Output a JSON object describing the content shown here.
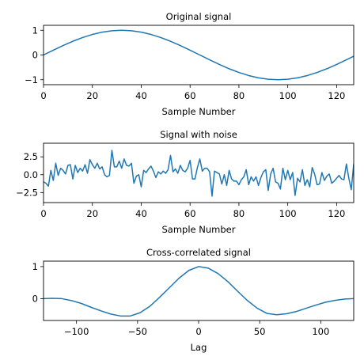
{
  "colors": {
    "line": "#1f77b4"
  },
  "chart_data": [
    {
      "type": "line",
      "title": "Original signal",
      "xlabel": "Sample Number",
      "ylabel": "",
      "xlim": [
        0,
        127
      ],
      "ylim": [
        -1.2,
        1.2
      ],
      "xticks": [
        0,
        20,
        40,
        60,
        80,
        100,
        120
      ],
      "yticks": [
        -1,
        0,
        1
      ],
      "grid": false,
      "series": [
        {
          "x": [
            0,
            4,
            8,
            12,
            16,
            20,
            24,
            28,
            32,
            36,
            40,
            44,
            48,
            52,
            56,
            60,
            64,
            68,
            72,
            76,
            80,
            84,
            88,
            92,
            96,
            100,
            104,
            108,
            112,
            116,
            120,
            124,
            127
          ],
          "y": [
            0,
            0.195,
            0.383,
            0.556,
            0.707,
            0.831,
            0.924,
            0.981,
            1,
            0.981,
            0.924,
            0.831,
            0.707,
            0.556,
            0.383,
            0.195,
            0,
            -0.195,
            -0.383,
            -0.556,
            -0.707,
            -0.831,
            -0.924,
            -0.981,
            -1,
            -0.981,
            -0.924,
            -0.831,
            -0.707,
            -0.556,
            -0.383,
            -0.195,
            -0.049
          ]
        }
      ]
    },
    {
      "type": "line",
      "title": "Signal with noise",
      "xlabel": "Sample Number",
      "ylabel": "",
      "xlim": [
        0,
        127
      ],
      "ylim": [
        -3.9,
        4.4
      ],
      "xticks": [
        0,
        20,
        40,
        60,
        80,
        100,
        120
      ],
      "yticks": [
        -2.5,
        0.0,
        2.5
      ],
      "ytick_labels": [
        "−2.5",
        "0.0",
        "2.5"
      ],
      "grid": false,
      "series": [
        {
          "x": [
            0,
            1,
            2,
            3,
            4,
            5,
            6,
            7,
            8,
            9,
            10,
            11,
            12,
            13,
            14,
            15,
            16,
            17,
            18,
            19,
            20,
            21,
            22,
            23,
            24,
            25,
            26,
            27,
            28,
            29,
            30,
            31,
            32,
            33,
            34,
            35,
            36,
            37,
            38,
            39,
            40,
            41,
            42,
            43,
            44,
            45,
            46,
            47,
            48,
            49,
            50,
            51,
            52,
            53,
            54,
            55,
            56,
            57,
            58,
            59,
            60,
            61,
            62,
            63,
            64,
            65,
            66,
            67,
            68,
            69,
            70,
            71,
            72,
            73,
            74,
            75,
            76,
            77,
            78,
            79,
            80,
            81,
            82,
            83,
            84,
            85,
            86,
            87,
            88,
            89,
            90,
            91,
            92,
            93,
            94,
            95,
            96,
            97,
            98,
            99,
            100,
            101,
            102,
            103,
            104,
            105,
            106,
            107,
            108,
            109,
            110,
            111,
            112,
            113,
            114,
            115,
            116,
            117,
            118,
            119,
            120,
            121,
            122,
            123,
            124,
            125,
            126,
            127
          ],
          "y": [
            -0.6,
            -0.9,
            -1.6,
            0.6,
            -0.8,
            1.6,
            0.1,
            0.9,
            0.7,
            0.3,
            1.3,
            1.4,
            -0.4,
            1.5,
            0.4,
            0.9,
            0.5,
            1.5,
            0.2,
            2.0,
            1.3,
            1.0,
            1.6,
            0.8,
            1.1,
            0.0,
            -0.3,
            -0.1,
            3.3,
            1.1,
            1.1,
            1.9,
            0.9,
            2.2,
            1.3,
            1.2,
            1.6,
            -1.3,
            -0.2,
            0.1,
            -1.7,
            0.6,
            0.3,
            0.8,
            1.2,
            0.5,
            -0.4,
            0.6,
            0.1,
            0.5,
            0.2,
            0.7,
            2.6,
            0.4,
            0.9,
            0.2,
            1.3,
            0.6,
            0.4,
            0.9,
            2.0,
            0.0,
            -0.6,
            1.0,
            2.2,
            0.5,
            1.0,
            0.9,
            0.3,
            -2.9,
            0.5,
            0.3,
            0.1,
            -1.3,
            0.0,
            -1.7,
            0.6,
            -0.6,
            -0.9,
            -0.8,
            -1.6,
            -0.8,
            -0.3,
            0.7,
            -1.3,
            -0.3,
            -0.9,
            -0.2,
            -1.5,
            -0.4,
            0.4,
            0.7,
            -2.2,
            0.2,
            0.9,
            -1.0,
            -1.1,
            -2.0,
            0.9,
            -0.7,
            0.6,
            -0.7,
            0.4,
            -3.0,
            -0.5,
            -1.1,
            0.7,
            -1.5,
            -0.7,
            -1.7,
            1.0,
            0.2,
            -1.4,
            -1.2,
            0.2,
            -0.8,
            -0.1,
            0.1,
            -1.3,
            -0.9,
            -0.4,
            0.0,
            -0.6,
            -0.7,
            0.4,
            -0.5,
            -1.1,
            1.5
          ],
          "y_display": [
            -1.0,
            -1.2,
            -1.6,
            0.6,
            -0.8,
            1.6,
            -0.1,
            0.9,
            0.6,
            0.1,
            1.3,
            1.4,
            -0.6,
            1.3,
            0.3,
            0.9,
            0.5,
            1.4,
            0.2,
            2.1,
            1.4,
            0.9,
            1.6,
            0.8,
            1.1,
            0.0,
            -0.3,
            -0.1,
            3.4,
            1.1,
            1.1,
            1.9,
            0.9,
            2.2,
            1.3,
            1.2,
            1.6,
            -1.2,
            -0.2,
            0.0,
            -1.7,
            0.6,
            0.3,
            0.8,
            1.2,
            0.5,
            -0.4,
            0.4,
            0.1,
            0.5,
            0.2,
            0.7,
            2.7,
            0.4,
            0.8,
            0.2,
            1.3,
            0.6,
            0.4,
            0.9,
            2.0,
            -0.6,
            -0.6,
            1.0,
            2.2,
            0.5,
            0.9,
            0.9,
            0.4,
            -3.0,
            0.5,
            0.3,
            0.1,
            -1.3,
            0.0,
            -1.5,
            0.6,
            -0.6,
            -0.9,
            -0.9,
            -1.4,
            -0.7,
            -0.3,
            0.7,
            -1.4,
            -0.3,
            -0.9,
            -0.3,
            -1.5,
            -0.4,
            0.4,
            0.7,
            -2.2,
            0.1,
            0.9,
            -1.0,
            -1.2,
            -2.0,
            0.9,
            -0.7,
            0.6,
            -0.7,
            0.3,
            -2.9,
            -0.5,
            -1.0,
            0.7,
            -1.5,
            -0.7,
            -1.7,
            1.0,
            0.1,
            -1.4,
            -1.3,
            0.3,
            -0.8,
            -0.2,
            0.1,
            -1.2,
            -0.9,
            -0.5,
            -0.1,
            -0.6,
            -0.7,
            1.5,
            -0.5,
            -2.1,
            1.5
          ]
        }
      ]
    },
    {
      "type": "line",
      "title": "Cross-correlated signal",
      "xlabel": "Lag",
      "ylabel": "",
      "xlim": [
        -127,
        127
      ],
      "ylim": [
        -0.68,
        1.17
      ],
      "xticks": [
        -100,
        -50,
        0,
        50,
        100
      ],
      "xtick_labels": [
        "−100",
        "−50",
        "0",
        "50",
        "100"
      ],
      "yticks": [
        0,
        1
      ],
      "grid": false,
      "series": [
        {
          "x": [
            -127,
            -120,
            -112,
            -104,
            -96,
            -88,
            -80,
            -72,
            -64,
            -56,
            -48,
            -40,
            -32,
            -24,
            -16,
            -8,
            0,
            8,
            16,
            24,
            32,
            40,
            48,
            56,
            64,
            72,
            80,
            88,
            96,
            104,
            112,
            120,
            127
          ],
          "y": [
            0.0,
            0.01,
            0.0,
            -0.06,
            -0.15,
            -0.27,
            -0.38,
            -0.48,
            -0.54,
            -0.54,
            -0.44,
            -0.24,
            0.04,
            0.34,
            0.64,
            0.88,
            1.0,
            0.95,
            0.78,
            0.53,
            0.23,
            -0.06,
            -0.3,
            -0.46,
            -0.5,
            -0.47,
            -0.4,
            -0.3,
            -0.2,
            -0.11,
            -0.05,
            -0.01,
            0.0
          ]
        }
      ]
    }
  ]
}
